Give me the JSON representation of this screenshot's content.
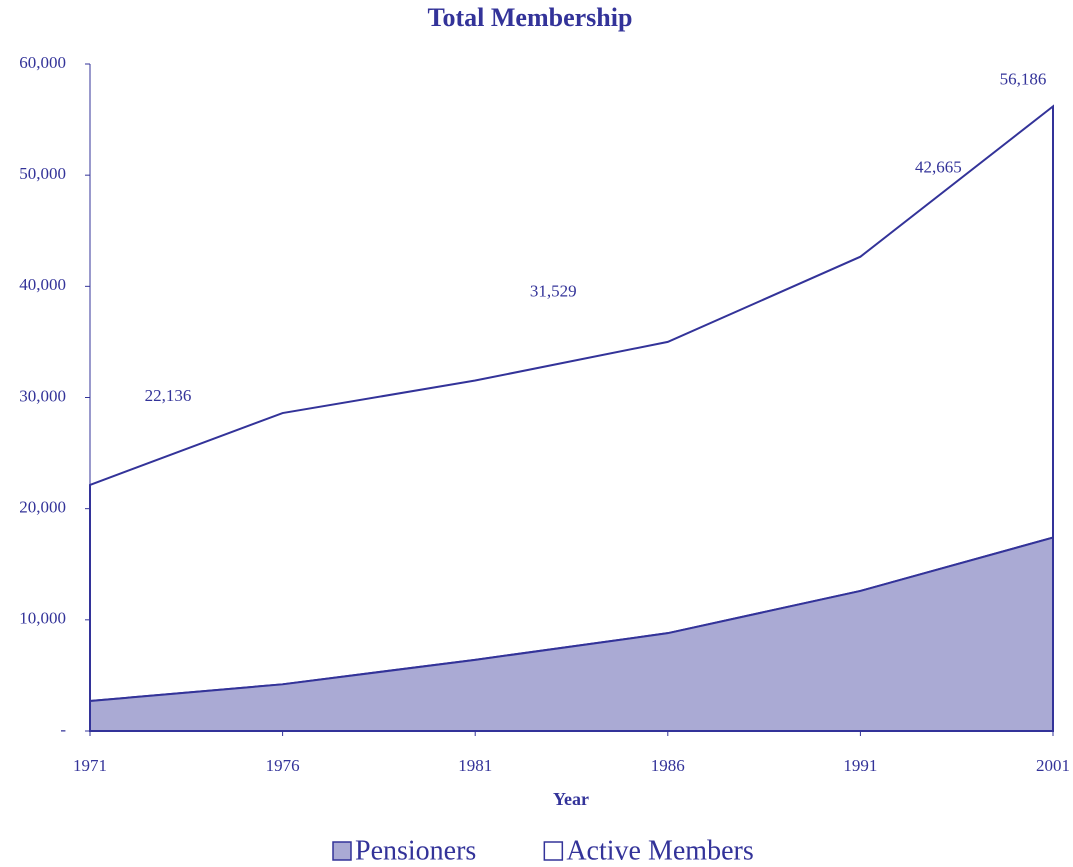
{
  "chart_data": {
    "type": "stacked_area",
    "title": "Total Membership",
    "x_label": "Year",
    "categories": [
      "1971",
      "1976",
      "1981",
      "1986",
      "1991",
      "2001"
    ],
    "series": [
      {
        "name": "Pensioners",
        "color": "#aaaad4",
        "values": [
          2700,
          4200,
          6400,
          8800,
          12600,
          17400
        ]
      },
      {
        "name": "Active Members",
        "color": "#ffffff",
        "values": [
          19436,
          24400,
          25129,
          26200,
          30065,
          38786
        ]
      }
    ],
    "totals": {
      "values": [
        22136,
        null,
        31529,
        null,
        42665,
        56186
      ],
      "value_labels": [
        "22,136",
        null,
        "31,529",
        null,
        "42,665",
        "56,186"
      ]
    },
    "line_color": "#333399",
    "ylim": [
      0,
      60000
    ],
    "yticks": [
      {
        "value": 0,
        "label": "-"
      },
      {
        "value": 10000,
        "label": "10,000"
      },
      {
        "value": 20000,
        "label": "20,000"
      },
      {
        "value": 30000,
        "label": "30,000"
      },
      {
        "value": 40000,
        "label": "40,000"
      },
      {
        "value": 50000,
        "label": "50,000"
      },
      {
        "value": 60000,
        "label": "60,000"
      }
    ]
  }
}
